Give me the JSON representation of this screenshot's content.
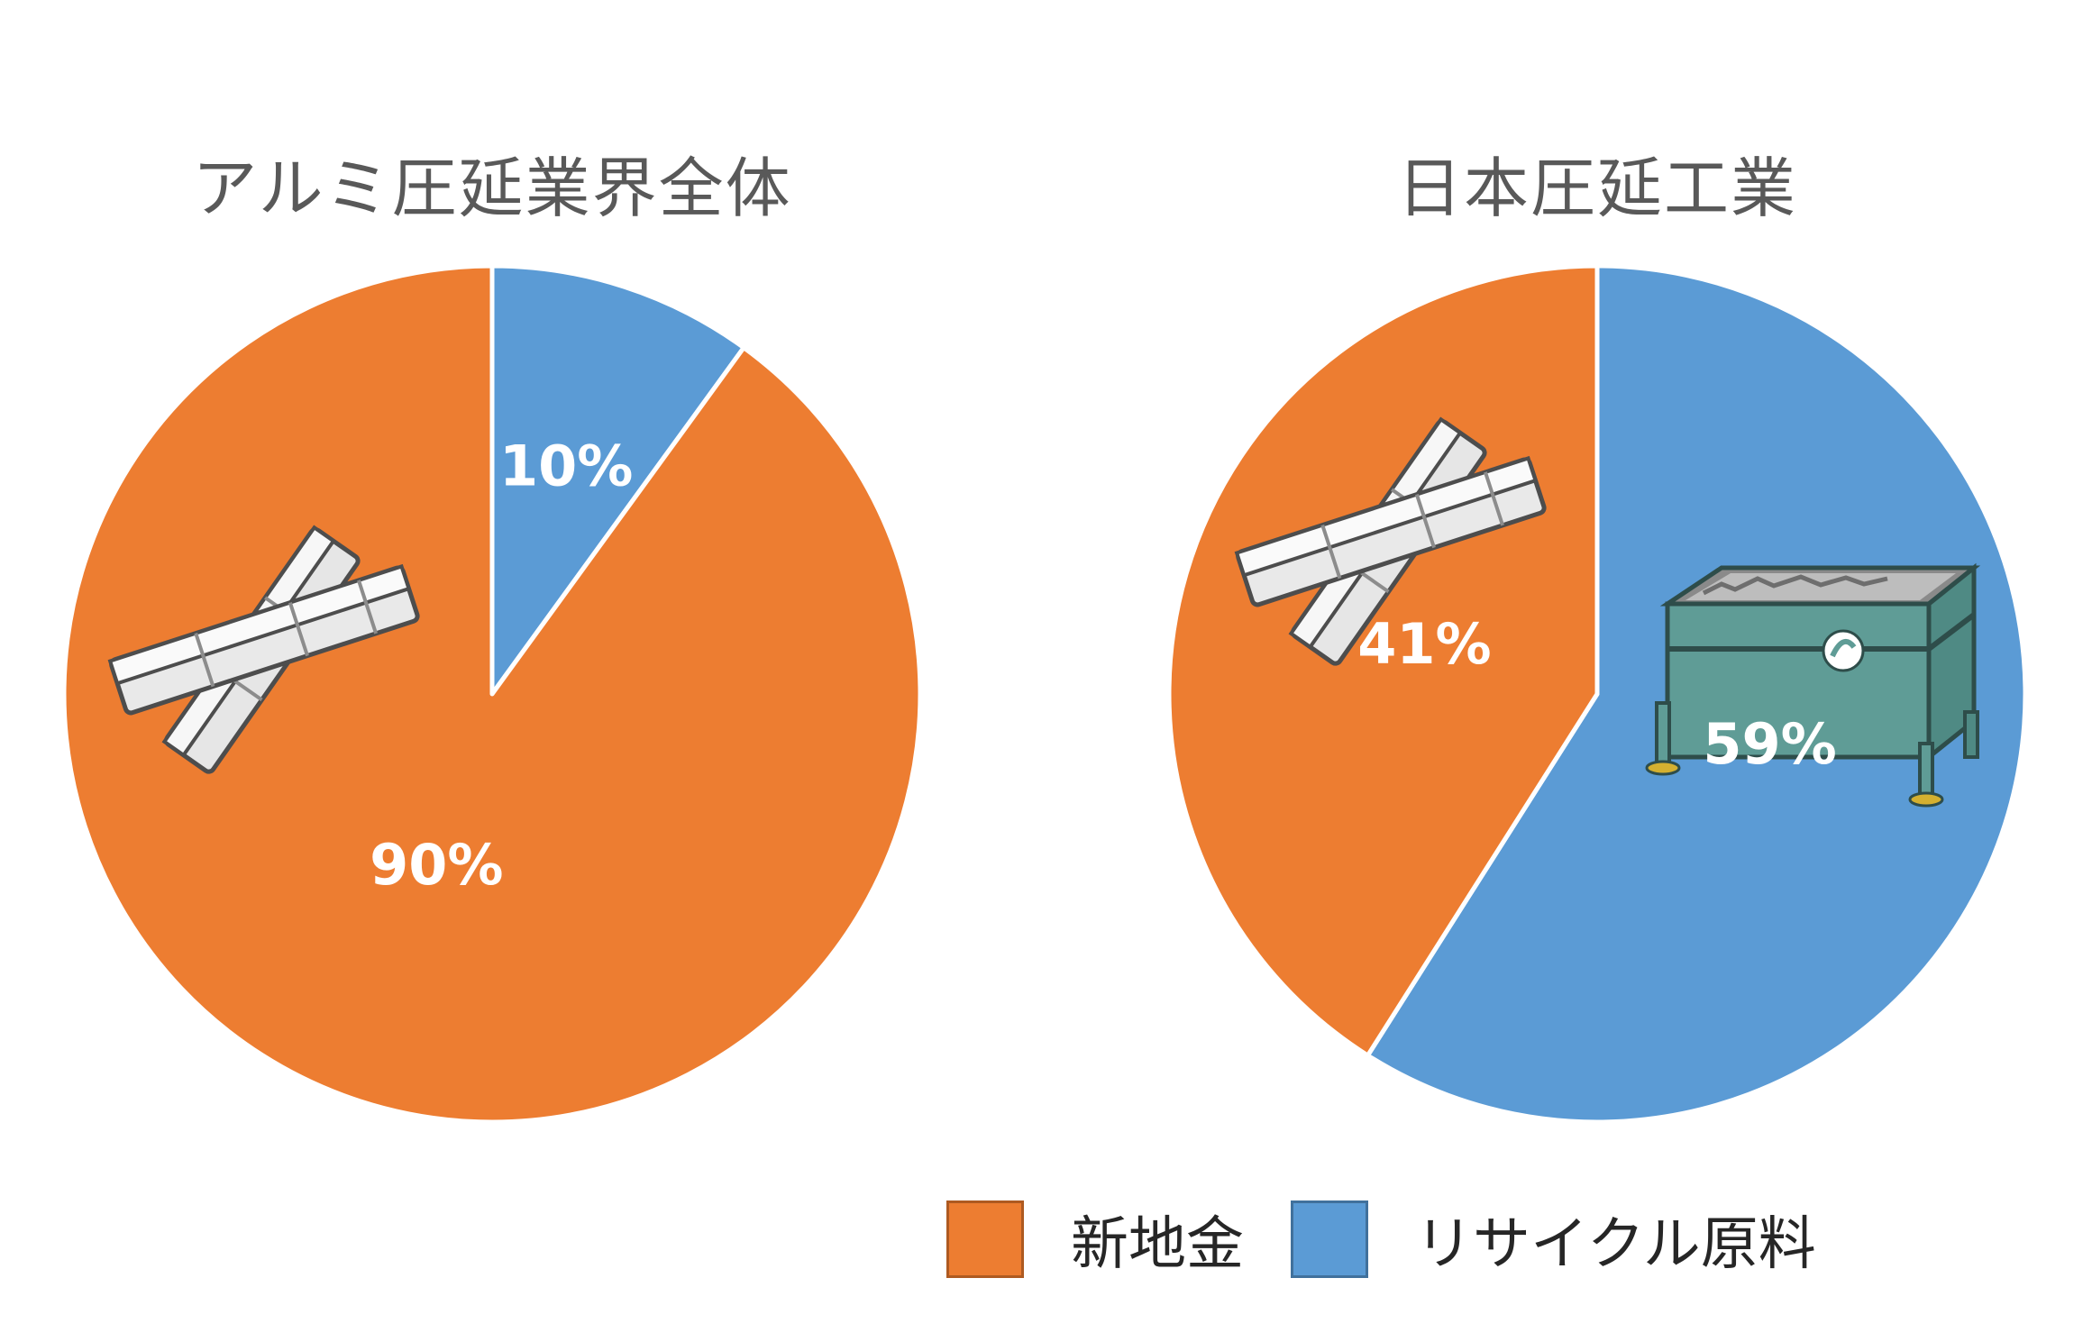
{
  "chart_data": [
    {
      "type": "pie",
      "title": "アルミ圧延業界全体",
      "slices": [
        {
          "label": "リサイクル原料",
          "value": 10,
          "display": "10%",
          "color": "#5B9BD5"
        },
        {
          "label": "新地金",
          "value": 90,
          "display": "90%",
          "color": "#ED7D31"
        }
      ]
    },
    {
      "type": "pie",
      "title": "日本圧延工業",
      "slices": [
        {
          "label": "リサイクル原料",
          "value": 59,
          "display": "59%",
          "color": "#5B9BD5"
        },
        {
          "label": "新地金",
          "value": 41,
          "display": "41%",
          "color": "#ED7D31"
        }
      ]
    }
  ],
  "legend": [
    {
      "label": "新地金",
      "color": "#ED7D31"
    },
    {
      "label": "リサイクル原料",
      "color": "#5B9BD5"
    }
  ],
  "icons": {
    "ingot": "aluminum-ingot-icon",
    "scrap_bin": "scrap-bin-icon"
  }
}
